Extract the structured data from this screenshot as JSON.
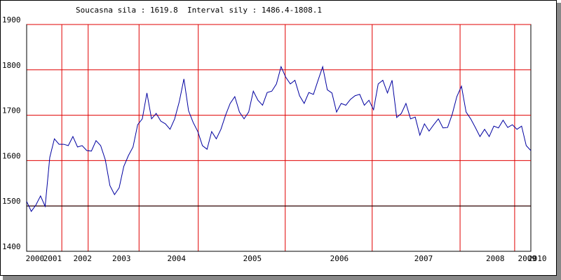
{
  "chart_data": {
    "type": "line",
    "title": "Soucasna sila : 1619.8  Interval sily : 1486.4-1808.1",
    "series": [
      {
        "color": "#0000a0",
        "values": [
          1510,
          1488,
          1502,
          1522,
          1499,
          1607,
          1648,
          1636,
          1636,
          1633,
          1653,
          1630,
          1633,
          1622,
          1621,
          1644,
          1633,
          1602,
          1545,
          1525,
          1540,
          1587,
          1611,
          1630,
          1679,
          1692,
          1749,
          1692,
          1704,
          1687,
          1681,
          1669,
          1692,
          1730,
          1780,
          1710,
          1684,
          1664,
          1633,
          1625,
          1664,
          1648,
          1669,
          1700,
          1726,
          1741,
          1707,
          1692,
          1707,
          1753,
          1733,
          1722,
          1750,
          1753,
          1769,
          1807,
          1784,
          1769,
          1777,
          1743,
          1726,
          1750,
          1746,
          1777,
          1807,
          1756,
          1749,
          1707,
          1726,
          1722,
          1735,
          1743,
          1746,
          1722,
          1733,
          1712,
          1769,
          1777,
          1749,
          1777,
          1695,
          1704,
          1726,
          1692,
          1696,
          1656,
          1681,
          1665,
          1679,
          1692,
          1672,
          1673,
          1702,
          1741,
          1764,
          1707,
          1692,
          1673,
          1653,
          1669,
          1653,
          1676,
          1672,
          1689,
          1673,
          1679,
          1669,
          1676,
          1633,
          1622
        ]
      }
    ],
    "xlim": [
      0,
      109
    ],
    "xticks": [
      {
        "value": 1.8,
        "label": "2000"
      },
      {
        "value": 5.6,
        "label": "2001"
      },
      {
        "value": 12.1,
        "label": "2002"
      },
      {
        "value": 20.5,
        "label": "2003"
      },
      {
        "value": 32.4,
        "label": "2004"
      },
      {
        "value": 48.8,
        "label": "2005"
      },
      {
        "value": 67.6,
        "label": "2006"
      },
      {
        "value": 85.8,
        "label": "2007"
      },
      {
        "value": 101.3,
        "label": "2008"
      },
      {
        "value": 108.2,
        "label": "2009"
      },
      {
        "value": 110.4,
        "label": "2010"
      }
    ],
    "xgrid": [
      7.6,
      13.3,
      24.3,
      37.1,
      55.9,
      74.7,
      93.7,
      105.5
    ],
    "ylim": [
      1400,
      1900
    ],
    "yticks": [
      1400,
      1500,
      1600,
      1700,
      1800,
      1900
    ],
    "grid": true,
    "grid_color": "#e00000",
    "reference_line": 1500
  }
}
